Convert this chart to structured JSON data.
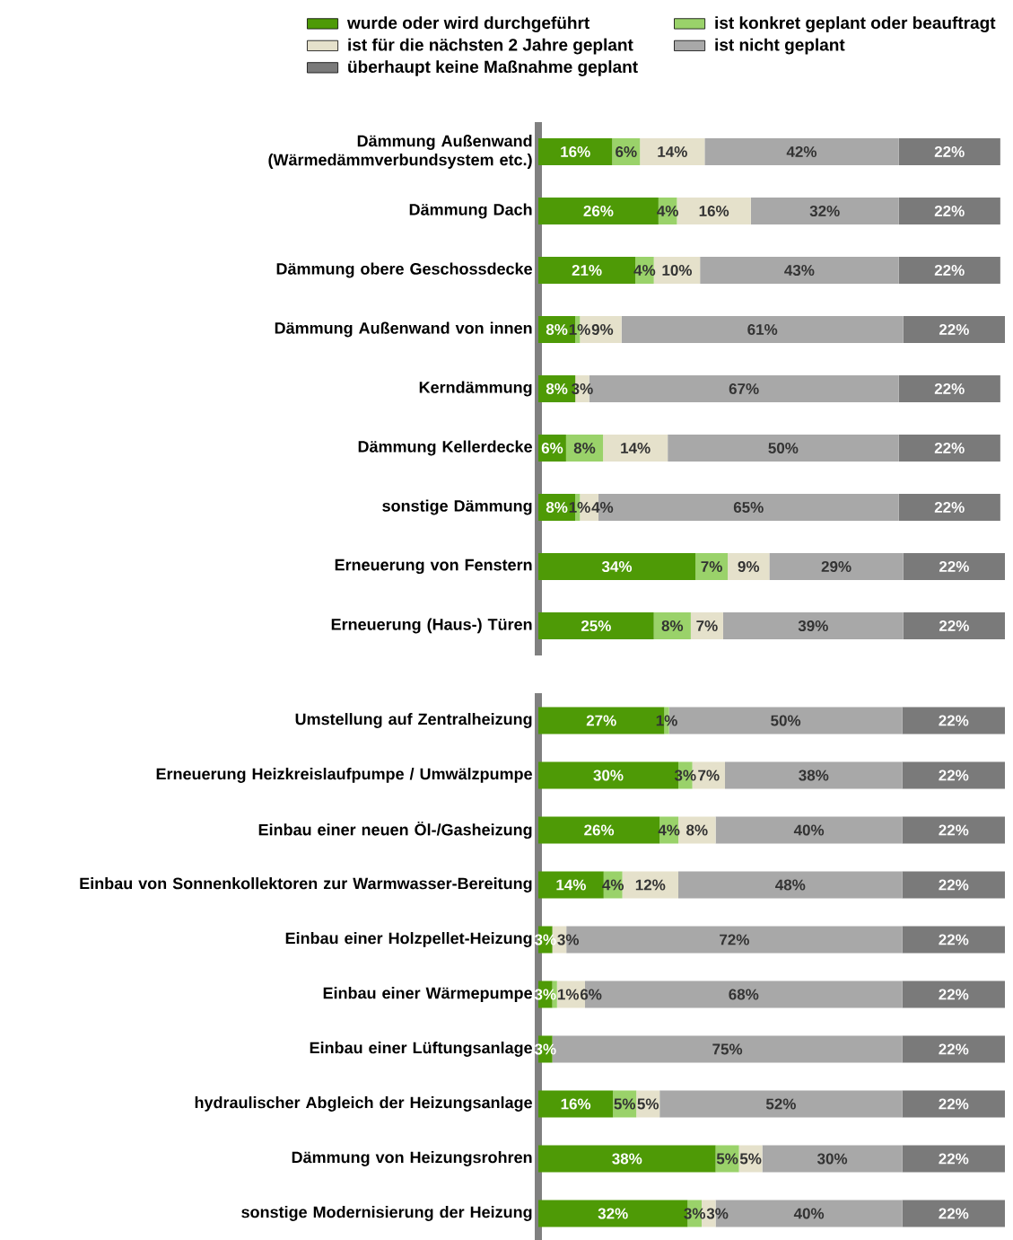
{
  "chart_data": [
    {
      "type": "bar",
      "orientation": "horizontal",
      "stacked": true,
      "legend": "top",
      "categories": [
        "Dämmung Außenwand (Wärmedämmverbundsystem etc.)",
        "Dämmung Dach",
        "Dämmung obere Geschossdecke",
        "Dämmung Außenwand von innen",
        "Kerndämmung",
        "Dämmung Kellerdecke",
        "sonstige Dämmung",
        "Erneuerung von Fenstern",
        "Erneuerung (Haus-) Türen"
      ],
      "series": [
        {
          "name": "wurde oder wird durchgeführt",
          "color": "#4e9a06",
          "values": [
            16,
            26,
            21,
            8,
            8,
            6,
            8,
            34,
            25
          ],
          "value_labels": [
            "16%",
            "26%",
            "21%",
            "8%",
            "8%",
            "6%",
            "8%",
            "34%",
            "25%"
          ]
        },
        {
          "name": "ist konkret geplant oder beauftragt",
          "color": "#9ad26a",
          "values": [
            6,
            4,
            4,
            1,
            0,
            8,
            1,
            7,
            8
          ],
          "value_labels": [
            "6%",
            "4%",
            "4%",
            "1%",
            null,
            "8%",
            "1%",
            "7%",
            "8%"
          ]
        },
        {
          "name": "ist für die nächsten 2 Jahre geplant",
          "color": "#e5e1cb",
          "values": [
            14,
            16,
            10,
            9,
            3,
            14,
            4,
            9,
            7
          ],
          "value_labels": [
            "14%",
            "16%",
            "10%",
            "9%",
            "3%",
            "14%",
            "4%",
            "9%",
            "7%"
          ]
        },
        {
          "name": "ist nicht geplant",
          "color": "#a8a8a8",
          "values": [
            42,
            32,
            43,
            61,
            67,
            50,
            65,
            29,
            39
          ],
          "value_labels": [
            "42%",
            "32%",
            "43%",
            "61%",
            "67%",
            "50%",
            "65%",
            "29%",
            "39%"
          ]
        },
        {
          "name": "überhaupt keine Maßnahme geplant",
          "color": "#7a7a7a",
          "values": [
            22,
            22,
            22,
            22,
            22,
            22,
            22,
            22,
            22
          ],
          "value_labels": [
            "22%",
            "22%",
            "22%",
            "22%",
            "22%",
            "22%",
            "22%",
            "22%",
            "22%"
          ]
        }
      ]
    },
    {
      "type": "bar",
      "orientation": "horizontal",
      "stacked": true,
      "categories": [
        "Umstellung auf Zentralheizung",
        "Erneuerung Heizkreislaufpumpe / Umwälzpumpe",
        "Einbau einer neuen Öl-/Gasheizung",
        "Einbau von Sonnenkollektoren zur Warmwasser-Bereitung",
        "Einbau einer Holzpellet-Heizung",
        "Einbau einer Wärmepumpe",
        "Einbau einer Lüftungsanlage",
        "hydraulischer Abgleich der Heizungsanlage",
        "Dämmung von Heizungsrohren",
        "sonstige Modernisierung der Heizung"
      ],
      "series": [
        {
          "color": "#4e9a06",
          "values": [
            27,
            30,
            26,
            14,
            3,
            3,
            3,
            16,
            38,
            32
          ],
          "value_labels": [
            "27%",
            "30%",
            "26%",
            "14%",
            "3%",
            "3%",
            "3%",
            "16%",
            "38%",
            "32%"
          ]
        },
        {
          "color": "#9ad26a",
          "values": [
            1,
            3,
            4,
            4,
            0,
            1,
            0,
            5,
            5,
            3
          ],
          "value_labels": [
            "1%",
            "3%",
            "4%",
            "4%",
            null,
            "1%",
            null,
            "5%",
            "5%",
            "3%"
          ]
        },
        {
          "color": "#e5e1cb",
          "values": [
            0,
            7,
            8,
            12,
            3,
            6,
            0,
            5,
            5,
            3
          ],
          "value_labels": [
            null,
            "7%",
            "8%",
            "12%",
            "3%",
            "6%",
            null,
            "5%",
            "5%",
            "3%"
          ]
        },
        {
          "color": "#a8a8a8",
          "values": [
            50,
            38,
            40,
            48,
            72,
            68,
            75,
            52,
            30,
            40
          ],
          "value_labels": [
            "50%",
            "38%",
            "40%",
            "48%",
            "72%",
            "68%",
            "75%",
            "52%",
            "30%",
            "40%"
          ]
        },
        {
          "color": "#7a7a7a",
          "values": [
            22,
            22,
            22,
            22,
            22,
            22,
            22,
            22,
            22,
            22
          ],
          "value_labels": [
            "22%",
            "22%",
            "22%",
            "22%",
            "22%",
            "22%",
            "22%",
            "22%",
            "22%",
            "22%"
          ]
        }
      ]
    }
  ]
}
